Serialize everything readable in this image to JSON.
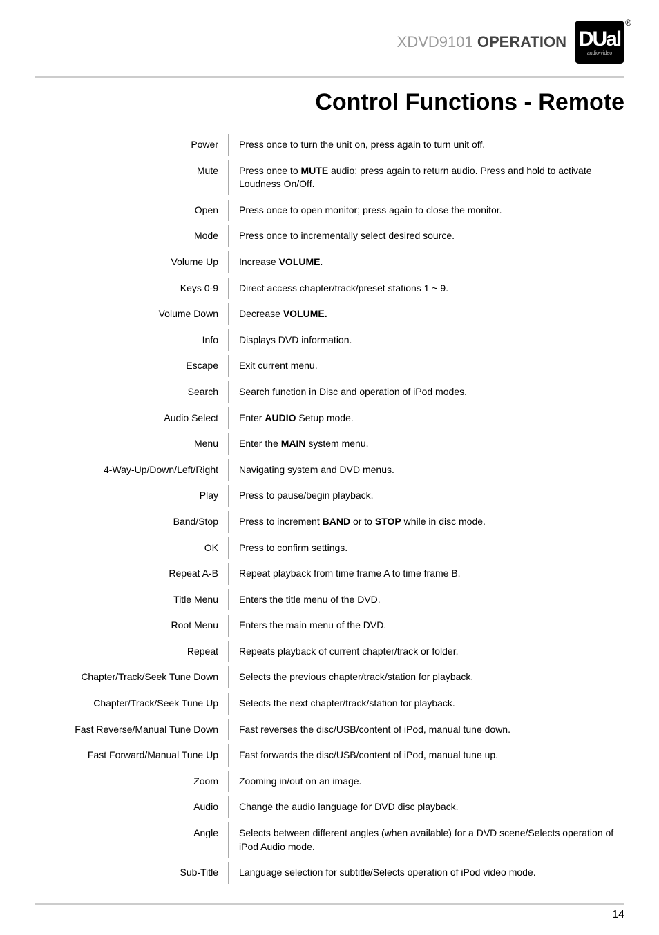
{
  "header": {
    "model": "XDVD9101",
    "section": "OPERATION",
    "logo_main": "DUal",
    "logo_sub": "audio•video",
    "logo_reg": "®"
  },
  "title": "Control Functions - Remote",
  "rows": [
    {
      "label": "Power",
      "desc_parts": [
        {
          "t": "Press once to turn the unit on, press again to turn unit off."
        }
      ]
    },
    {
      "label": "Mute",
      "desc_parts": [
        {
          "t": "Press once to "
        },
        {
          "t": "MUTE",
          "b": true
        },
        {
          "t": " audio; press again to return audio. Press and hold to activate Loudness On/Off."
        }
      ]
    },
    {
      "label": "Open",
      "desc_parts": [
        {
          "t": "Press once to open monitor; press again to close the monitor."
        }
      ]
    },
    {
      "label": "Mode",
      "desc_parts": [
        {
          "t": "Press once to incrementally select desired source."
        }
      ]
    },
    {
      "label": "Volume Up",
      "desc_parts": [
        {
          "t": "Increase "
        },
        {
          "t": "VOLUME",
          "b": true
        },
        {
          "t": "."
        }
      ]
    },
    {
      "label": "Keys 0-9",
      "desc_parts": [
        {
          "t": "Direct access chapter/track/preset stations 1 ~ 9."
        }
      ]
    },
    {
      "label": "Volume Down",
      "desc_parts": [
        {
          "t": "Decrease "
        },
        {
          "t": "VOLUME.",
          "b": true
        }
      ]
    },
    {
      "label": "Info",
      "desc_parts": [
        {
          "t": "Displays DVD information."
        }
      ]
    },
    {
      "label": "Escape",
      "desc_parts": [
        {
          "t": "Exit current menu."
        }
      ]
    },
    {
      "label": "Search",
      "desc_parts": [
        {
          "t": "Search function in Disc and operation of iPod modes."
        }
      ]
    },
    {
      "label": "Audio Select",
      "desc_parts": [
        {
          "t": "Enter "
        },
        {
          "t": "AUDIO",
          "b": true
        },
        {
          "t": " Setup mode."
        }
      ]
    },
    {
      "label": "Menu",
      "desc_parts": [
        {
          "t": "Enter the "
        },
        {
          "t": "MAIN",
          "b": true
        },
        {
          "t": " system menu."
        }
      ]
    },
    {
      "label": "4-Way-Up/Down/Left/Right",
      "desc_parts": [
        {
          "t": "Navigating system and DVD menus."
        }
      ]
    },
    {
      "label": "Play",
      "desc_parts": [
        {
          "t": "Press to pause/begin playback."
        }
      ]
    },
    {
      "label": "Band/Stop",
      "desc_parts": [
        {
          "t": "Press to increment "
        },
        {
          "t": "BAND",
          "b": true
        },
        {
          "t": " or to "
        },
        {
          "t": "STOP",
          "b": true
        },
        {
          "t": " while in disc mode."
        }
      ]
    },
    {
      "label": "OK",
      "desc_parts": [
        {
          "t": "Press to confirm settings."
        }
      ]
    },
    {
      "label": "Repeat A-B",
      "desc_parts": [
        {
          "t": "Repeat playback from time frame A to time frame B."
        }
      ]
    },
    {
      "label": "Title Menu",
      "desc_parts": [
        {
          "t": "Enters the title menu of the DVD."
        }
      ]
    },
    {
      "label": "Root Menu",
      "desc_parts": [
        {
          "t": "Enters the main menu of the DVD."
        }
      ]
    },
    {
      "label": "Repeat",
      "desc_parts": [
        {
          "t": "Repeats playback of current chapter/track or folder."
        }
      ]
    },
    {
      "label": "Chapter/Track/Seek Tune Down",
      "desc_parts": [
        {
          "t": "Selects the previous chapter/track/station for playback."
        }
      ]
    },
    {
      "label": "Chapter/Track/Seek Tune Up",
      "desc_parts": [
        {
          "t": "Selects the next chapter/track/station for playback."
        }
      ]
    },
    {
      "label": "Fast Reverse/Manual Tune Down",
      "desc_parts": [
        {
          "t": "Fast reverses the disc/USB/content of iPod, manual tune down."
        }
      ]
    },
    {
      "label": "Fast Forward/Manual Tune Up",
      "desc_parts": [
        {
          "t": "Fast forwards the disc/USB/content of iPod, manual tune up."
        }
      ]
    },
    {
      "label": "Zoom",
      "desc_parts": [
        {
          "t": "Zooming in/out on an image."
        }
      ]
    },
    {
      "label": "Audio",
      "desc_parts": [
        {
          "t": "Change the audio language for DVD disc playback."
        }
      ]
    },
    {
      "label": "Angle",
      "desc_parts": [
        {
          "t": "Selects between different angles (when available) for a DVD scene/Selects operation of iPod Audio mode."
        }
      ]
    },
    {
      "label": "Sub-Title",
      "desc_parts": [
        {
          "t": "Language selection for subtitle/Selects operation of iPod video mode."
        }
      ]
    }
  ],
  "page_number": "14"
}
